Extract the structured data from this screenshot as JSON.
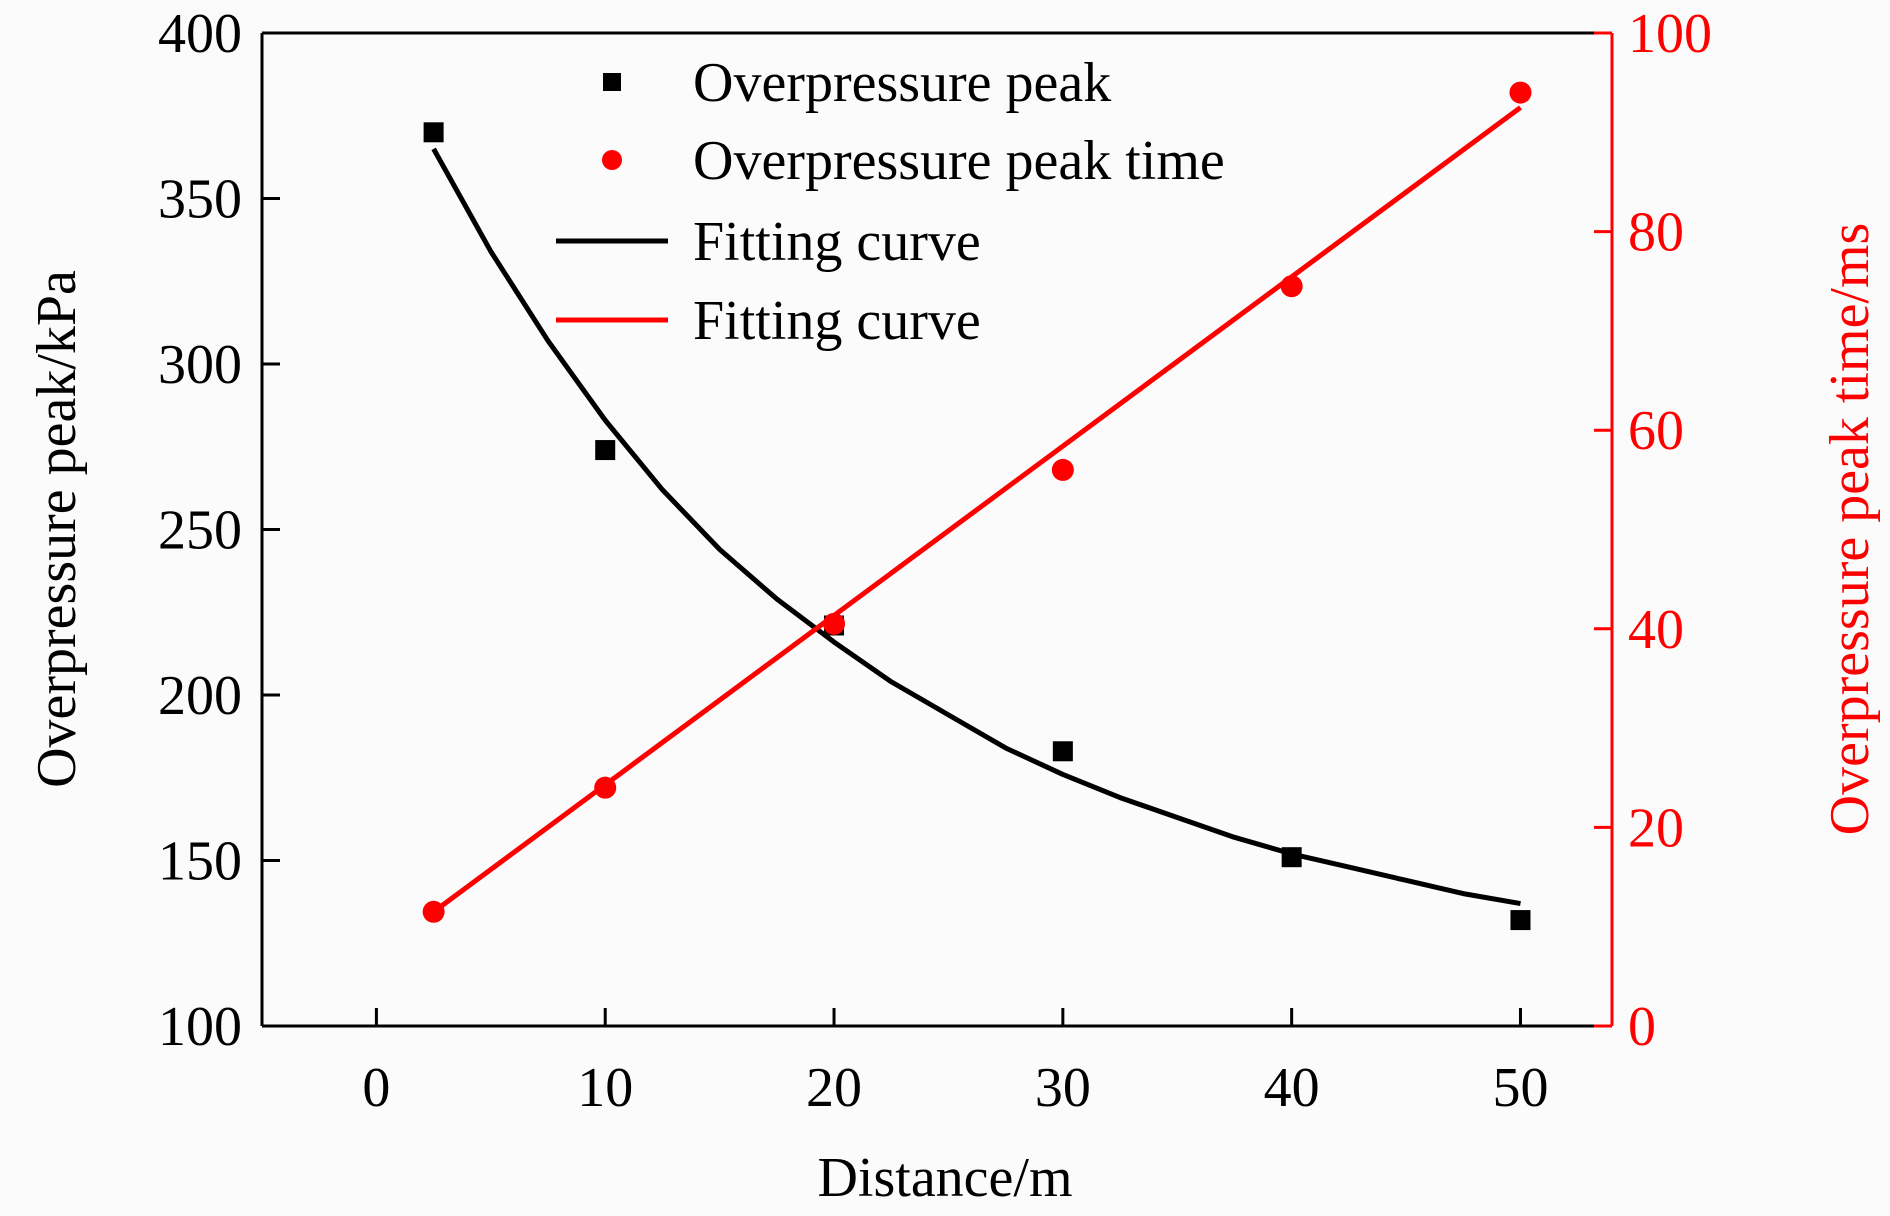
{
  "chart_data": {
    "type": "scatter",
    "xlabel": "Distance/m",
    "ylabel_left": "Overpressure peak/kPa",
    "ylabel_right": "Overpressure peak time/ms",
    "xlim": [
      -5,
      54
    ],
    "xticks": [
      0,
      10,
      20,
      30,
      40,
      50
    ],
    "ylim_left": [
      100,
      400
    ],
    "yticks_left": [
      100,
      150,
      200,
      250,
      300,
      350,
      400
    ],
    "ylim_right": [
      0,
      100
    ],
    "yticks_right": [
      0,
      20,
      40,
      60,
      80,
      100
    ],
    "grid": false,
    "legend_position": "top-center",
    "series": [
      {
        "name": "Overpressure peak",
        "axis": "left",
        "kind": "scatter",
        "marker": "square",
        "color": "#000000",
        "x": [
          2.5,
          10,
          20,
          30,
          40,
          50
        ],
        "y": [
          370,
          274,
          221,
          183,
          151,
          132
        ]
      },
      {
        "name": "Overpressure peak time",
        "axis": "right",
        "kind": "scatter",
        "marker": "circle",
        "color": "#ff0000",
        "x": [
          2.5,
          10,
          20,
          30,
          40,
          50
        ],
        "y": [
          11.5,
          24,
          40.5,
          56,
          74.5,
          94
        ]
      },
      {
        "name": "Fitting curve",
        "axis": "left",
        "kind": "line",
        "color": "#000000",
        "x": [
          2.5,
          5,
          7.5,
          10,
          12.5,
          15,
          17.5,
          20,
          22.5,
          25,
          27.5,
          30,
          32.5,
          35,
          37.5,
          40,
          42.5,
          45,
          47.5,
          50
        ],
        "y": [
          365,
          334,
          307,
          283,
          262,
          244,
          229,
          216,
          204,
          194,
          184,
          176,
          169,
          163,
          157,
          152,
          148,
          144,
          140,
          137
        ]
      },
      {
        "name": "Fitting curve",
        "axis": "right",
        "kind": "line",
        "color": "#ff0000",
        "x": [
          2.5,
          50
        ],
        "y": [
          11.5,
          92.5
        ]
      }
    ]
  }
}
